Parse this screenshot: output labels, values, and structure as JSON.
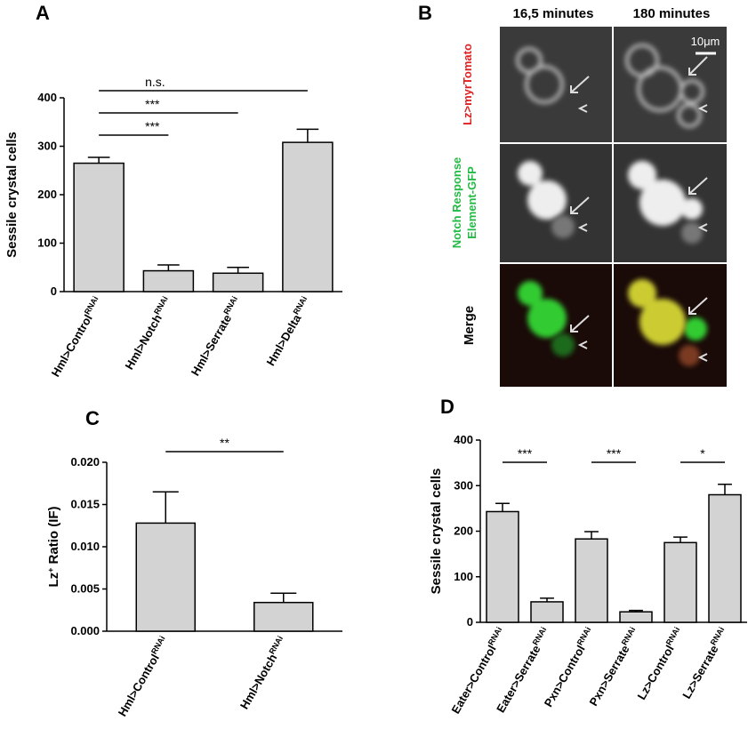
{
  "chart_data": [
    {
      "type": "bar",
      "panel": "A",
      "y_label": {
        "text": "Sessile crystal cells"
      },
      "categories": [
        {
          "text": "Hml>Control",
          "sup": "RNAi"
        },
        {
          "text": "Hml>Notch",
          "sup": "RNAi"
        },
        {
          "text": "Hml>Serrate",
          "sup": "RNAi"
        },
        {
          "text": "Hml>Delta",
          "sup": "RNAi"
        }
      ],
      "values": [
        265,
        43,
        38,
        308
      ],
      "errors": [
        12,
        12,
        12,
        27
      ],
      "color": "#d3d3d3",
      "ylim": [
        0,
        400
      ],
      "yticks": [
        0,
        100,
        200,
        300,
        400
      ],
      "annotations": [
        {
          "from": 0,
          "to": 3,
          "label": "n.s."
        },
        {
          "from": 0,
          "to": 2,
          "label": "***"
        },
        {
          "from": 0,
          "to": 1,
          "label": "***"
        }
      ]
    },
    {
      "type": "bar",
      "panel": "C",
      "y_label": {
        "text": "Lz",
        "sup": "+",
        "rest": " Ratio (IF)"
      },
      "categories": [
        {
          "text": "Hml>Control",
          "sup": "RNAi"
        },
        {
          "text": "Hml>Notch",
          "sup": "RNAi"
        }
      ],
      "values": [
        0.0128,
        0.0034
      ],
      "errors": [
        0.0037,
        0.0011
      ],
      "color": "#d3d3d3",
      "ylim": [
        0,
        0.02
      ],
      "yticks": [
        {
          "value": 0,
          "label": "0.000"
        },
        {
          "value": 0.005,
          "label": "0.005"
        },
        {
          "value": 0.01,
          "label": "0.010"
        },
        {
          "value": 0.015,
          "label": "0.015"
        },
        {
          "value": 0.02,
          "label": "0.020"
        }
      ],
      "annotations": [
        {
          "from": 0,
          "to": 1,
          "label": "**"
        }
      ]
    },
    {
      "type": "bar",
      "panel": "D",
      "y_label": {
        "text": "Sessile crystal cells"
      },
      "categories": [
        {
          "text": "Eater>Control",
          "sup": "RNAi"
        },
        {
          "text": "Eater>Serrate",
          "sup": "RNAi"
        },
        {
          "text": "Pxn>Control",
          "sup": "RNAi"
        },
        {
          "text": "Pxn>Serrate",
          "sup": "RNAi"
        },
        {
          "text": "Lz>Control",
          "sup": "RNAi"
        },
        {
          "text": "Lz>Serrate",
          "sup": "RNAi"
        }
      ],
      "values": [
        243,
        45,
        183,
        23,
        175,
        280
      ],
      "errors": [
        18,
        8,
        16,
        3,
        12,
        23
      ],
      "color": "#d3d3d3",
      "ylim": [
        0,
        400
      ],
      "yticks": [
        0,
        100,
        200,
        300,
        400
      ],
      "annotations": [
        {
          "from": 0,
          "to": 1,
          "label": "***"
        },
        {
          "from": 2,
          "to": 3,
          "label": "***"
        },
        {
          "from": 4,
          "to": 5,
          "label": "*"
        }
      ]
    }
  ],
  "panel_b": {
    "panel": "B",
    "columns": [
      "16,5 minutes",
      "180 minutes"
    ],
    "scale_bar": "10μm",
    "rows": [
      {
        "lines": [
          "Lz>myrTomato"
        ]
      },
      {
        "lines": [
          "Notch  Response",
          "Element-GFP"
        ]
      },
      {
        "lines": [
          "Merge"
        ]
      }
    ]
  }
}
